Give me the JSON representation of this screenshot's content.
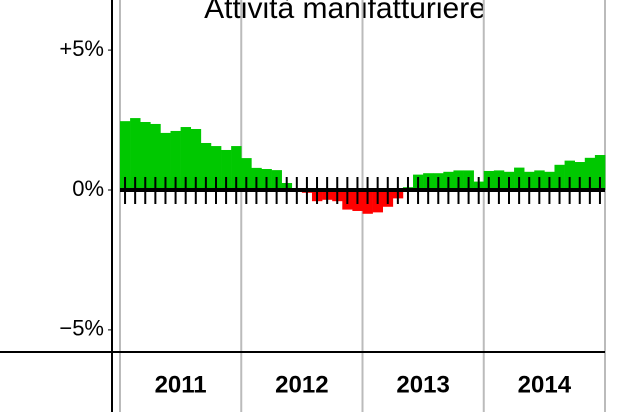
{
  "chart_data": {
    "type": "bar",
    "title": "Attività manifatturiere",
    "groups": [
      "2011",
      "2012",
      "2013",
      "2014"
    ],
    "values": [
      2.46,
      2.57,
      2.43,
      2.36,
      2.04,
      2.11,
      2.25,
      2.18,
      1.68,
      1.57,
      1.43,
      1.57,
      1.14,
      0.79,
      0.75,
      0.71,
      0.25,
      0.05,
      -0.1,
      -0.4,
      -0.35,
      -0.4,
      -0.7,
      -0.75,
      -0.85,
      -0.8,
      -0.6,
      -0.3,
      0.1,
      0.55,
      0.6,
      0.6,
      0.65,
      0.7,
      0.7,
      0.3,
      0.68,
      0.7,
      0.65,
      0.8,
      0.65,
      0.7,
      0.65,
      0.9,
      1.05,
      1.0,
      1.15,
      1.25
    ],
    "color_pos": "#00c800",
    "color_neg": "#ff0000",
    "ylim": [
      -5.79,
      6.79
    ],
    "yticks": [
      {
        "value": 5,
        "label": "+5%"
      },
      {
        "value": 0,
        "label": "0%"
      },
      {
        "value": -5,
        "label": "−5%"
      }
    ]
  }
}
